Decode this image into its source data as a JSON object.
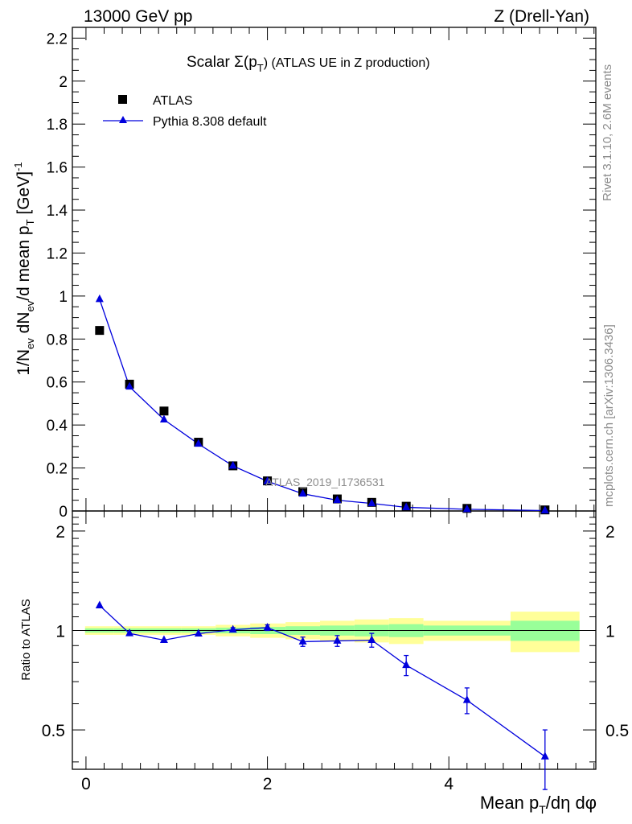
{
  "header": {
    "energy_label": "13000 GeV pp",
    "process_label": "Z (Drell-Yan)"
  },
  "side_labels": {
    "rivet": "Rivet 3.1.10,  2.6M events",
    "mcplots": "mcplots.cern.ch [arXiv:1306.3436]"
  },
  "chart_data": [
    {
      "type": "scatter",
      "panel": "main",
      "title": "Scalar Σ(p_T) (ATLAS UE in Z production)",
      "title_parts": {
        "prefix": "Scalar Σ(p",
        "sub": "T",
        "suffix": ") (ATLAS UE in Z production)"
      },
      "analysis_label": "ATLAS_2019_I1736531",
      "ylabel": "1/N_ev dN_ev/d mean p_T [GeV]^-1",
      "ylabel_parts": {
        "a": "1/N",
        "a_sub": "ev",
        "b": " dN",
        "b_sub": "ev",
        "c": "/d mean p",
        "c_sub": "T",
        "d": " [GeV]",
        "d_sup": "-1"
      },
      "xlim": [
        -0.15,
        5.62
      ],
      "ylim": [
        0,
        2.25
      ],
      "y_ticks": [
        0,
        0.2,
        0.4,
        0.6,
        0.8,
        1,
        1.2,
        1.4,
        1.6,
        1.8,
        2,
        2.2
      ],
      "y_tick_labels": [
        "0",
        "0.2",
        "0.4",
        "0.6",
        "0.8",
        "1",
        "1.2",
        "1.4",
        "1.6",
        "1.8",
        "2",
        "2.2"
      ],
      "legend": {
        "position": "top-left",
        "entries": [
          {
            "label": "ATLAS",
            "marker": "square",
            "color": "#000000"
          },
          {
            "label": "Pythia 8.308 default",
            "marker": "triangle",
            "color": "#0000dd"
          }
        ]
      },
      "series": [
        {
          "name": "ATLAS",
          "x": [
            0.15,
            0.48,
            0.86,
            1.24,
            1.62,
            2.0,
            2.39,
            2.77,
            3.15,
            3.53,
            4.2,
            5.06
          ],
          "values": [
            0.84,
            0.59,
            0.465,
            0.32,
            0.21,
            0.14,
            0.09,
            0.056,
            0.04,
            0.022,
            0.012,
            0.005
          ]
        },
        {
          "name": "Pythia 8.308 default",
          "x": [
            0.15,
            0.48,
            0.86,
            1.24,
            1.62,
            2.0,
            2.39,
            2.77,
            3.15,
            3.53,
            4.2,
            5.06
          ],
          "values": [
            0.985,
            0.578,
            0.425,
            0.312,
            0.21,
            0.138,
            0.08,
            0.05,
            0.035,
            0.017,
            0.008,
            0.002
          ]
        }
      ]
    },
    {
      "type": "line",
      "panel": "ratio",
      "ylabel": "Ratio to ATLAS",
      "xlabel": "Mean p_T/dη dφ",
      "xlabel_parts": {
        "a": "Mean p",
        "a_sub": "T",
        "b": "/dη dφ"
      },
      "xlim": [
        -0.15,
        5.62
      ],
      "ylim": [
        0.38,
        2.3
      ],
      "x_ticks": [
        0,
        2,
        4
      ],
      "x_tick_labels": [
        "0",
        "2",
        "4"
      ],
      "y_ticks": [
        0.5,
        1,
        2
      ],
      "y_tick_labels": [
        "0.5",
        "1",
        "2"
      ],
      "bands": {
        "bins": [
          [
            -0.01,
            0.31
          ],
          [
            0.31,
            0.67
          ],
          [
            0.67,
            1.05
          ],
          [
            1.05,
            1.43
          ],
          [
            1.43,
            1.81
          ],
          [
            1.81,
            2.2
          ],
          [
            2.2,
            2.58
          ],
          [
            2.58,
            2.96
          ],
          [
            2.96,
            3.34
          ],
          [
            3.34,
            3.72
          ],
          [
            3.72,
            4.68
          ],
          [
            4.68,
            5.44
          ]
        ],
        "yellow_halfwidth": [
          0.03,
          0.03,
          0.03,
          0.03,
          0.04,
          0.05,
          0.06,
          0.07,
          0.08,
          0.09,
          0.07,
          0.14
        ],
        "green_halfwidth": [
          0.015,
          0.015,
          0.015,
          0.015,
          0.02,
          0.025,
          0.03,
          0.035,
          0.04,
          0.045,
          0.035,
          0.07
        ],
        "yellow_color": "#ffff99",
        "green_color": "#99ff99"
      },
      "series": [
        {
          "name": "Pythia 8.308 default",
          "color": "#0000dd",
          "x": [
            0.15,
            0.48,
            0.86,
            1.24,
            1.62,
            2.0,
            2.39,
            2.77,
            3.15,
            3.53,
            4.2,
            5.06
          ],
          "values": [
            1.19,
            0.98,
            0.935,
            0.978,
            1.005,
            1.02,
            0.925,
            0.93,
            0.935,
            0.785,
            0.615,
            0.415
          ],
          "errors": [
            0.0,
            0.0,
            0.0,
            0.0,
            0.015,
            0.02,
            0.03,
            0.035,
            0.045,
            0.055,
            0.055,
            0.085
          ]
        }
      ]
    }
  ]
}
